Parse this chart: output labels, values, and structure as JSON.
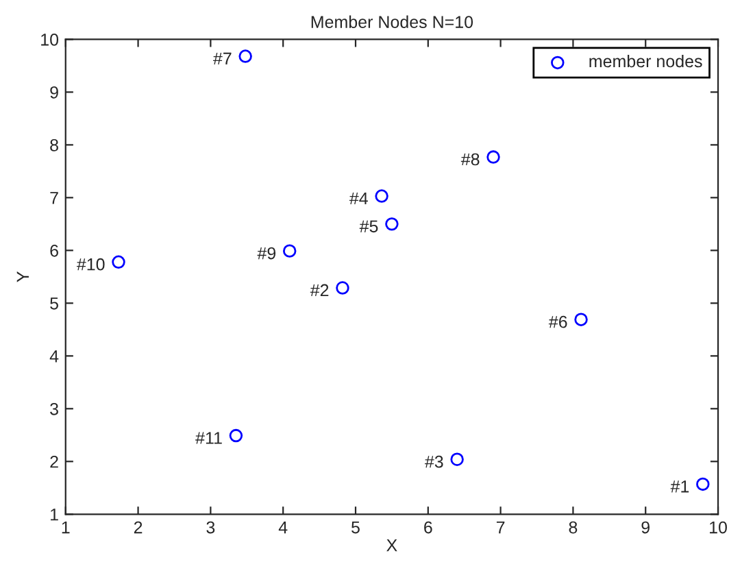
{
  "chart_data": {
    "type": "scatter",
    "title": "Member Nodes N=10",
    "xlabel": "X",
    "ylabel": "Y",
    "xlim": [
      1,
      10
    ],
    "ylim": [
      1,
      10
    ],
    "xticks": [
      1,
      2,
      3,
      4,
      5,
      6,
      7,
      8,
      9,
      10
    ],
    "yticks": [
      1,
      2,
      3,
      4,
      5,
      6,
      7,
      8,
      9,
      10
    ],
    "grid": false,
    "legend": "top right",
    "marker": "circle",
    "series": [
      {
        "name": "member nodes",
        "color": "#0000ff",
        "x": [
          9.79,
          4.82,
          6.4,
          5.36,
          5.5,
          8.11,
          3.48,
          6.9,
          4.09,
          1.73,
          3.35
        ],
        "values": [
          1.57,
          5.29,
          2.04,
          7.03,
          6.5,
          4.69,
          9.68,
          7.77,
          5.99,
          5.78,
          2.49
        ]
      }
    ],
    "annotations": [
      {
        "text": "#1",
        "x": 9.79,
        "y": 1.57
      },
      {
        "text": "#2",
        "x": 4.82,
        "y": 5.29
      },
      {
        "text": "#3",
        "x": 6.4,
        "y": 2.04
      },
      {
        "text": "#4",
        "x": 5.36,
        "y": 7.03
      },
      {
        "text": "#5",
        "x": 5.5,
        "y": 6.5
      },
      {
        "text": "#6",
        "x": 8.11,
        "y": 4.69
      },
      {
        "text": "#7",
        "x": 3.48,
        "y": 9.68
      },
      {
        "text": "#8",
        "x": 6.9,
        "y": 7.77
      },
      {
        "text": "#9",
        "x": 4.09,
        "y": 5.99
      },
      {
        "text": "#10",
        "x": 1.73,
        "y": 5.78
      },
      {
        "text": "#11",
        "x": 3.35,
        "y": 2.49
      }
    ]
  }
}
